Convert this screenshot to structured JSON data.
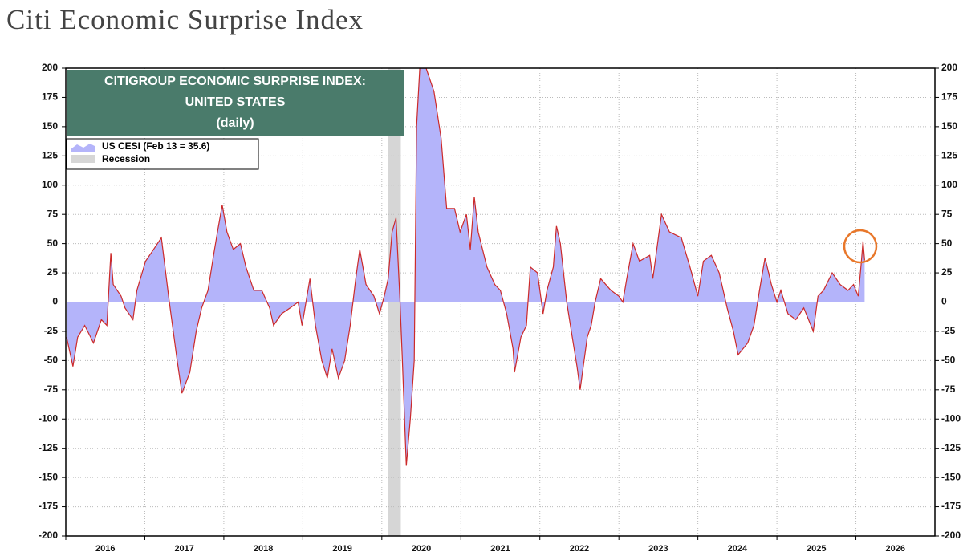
{
  "chart_data": {
    "type": "area",
    "title": "Citi Economic Surprise Index",
    "box_title": [
      "CITIGROUP ECONOMIC SURPRISE INDEX:",
      "UNITED STATES",
      "(daily)"
    ],
    "box_color": "#4a7b6b",
    "x": [
      2016.01,
      2016.09,
      2016.15,
      2016.24,
      2016.35,
      2016.45,
      2016.52,
      2016.57,
      2016.6,
      2016.7,
      2016.75,
      2016.85,
      2016.9,
      2017.01,
      2017.11,
      2017.21,
      2017.31,
      2017.41,
      2017.47,
      2017.57,
      2017.65,
      2017.72,
      2017.8,
      2017.87,
      2017.92,
      2017.98,
      2018.04,
      2018.12,
      2018.21,
      2018.28,
      2018.38,
      2018.48,
      2018.58,
      2018.63,
      2018.73,
      2018.84,
      2018.94,
      2018.99,
      2019.09,
      2019.16,
      2019.24,
      2019.31,
      2019.37,
      2019.45,
      2019.53,
      2019.6,
      2019.67,
      2019.72,
      2019.8,
      2019.9,
      2019.97,
      2020.03,
      2020.08,
      2020.13,
      2020.18,
      2020.23,
      2020.26,
      2020.31,
      2020.36,
      2020.41,
      2020.44,
      2020.48,
      2020.56,
      2020.66,
      2020.75,
      2020.82,
      2020.92,
      2020.99,
      2021.07,
      2021.12,
      2021.17,
      2021.22,
      2021.33,
      2021.43,
      2021.5,
      2021.58,
      2021.66,
      2021.68,
      2021.76,
      2021.83,
      2021.88,
      2021.97,
      2022.04,
      2022.09,
      2022.17,
      2022.21,
      2022.26,
      2022.34,
      2022.41,
      2022.47,
      2022.51,
      2022.6,
      2022.65,
      2022.7,
      2022.77,
      2022.9,
      2023.0,
      2023.05,
      2023.1,
      2023.18,
      2023.26,
      2023.39,
      2023.43,
      2023.54,
      2023.64,
      2023.79,
      2023.9,
      2024.0,
      2024.07,
      2024.17,
      2024.27,
      2024.37,
      2024.45,
      2024.51,
      2024.63,
      2024.71,
      2024.78,
      2024.85,
      2024.93,
      2025.0,
      2025.05,
      2025.14,
      2025.24,
      2025.34,
      2025.46,
      2025.52,
      2025.59,
      2025.7,
      2025.8,
      2025.9,
      2025.97,
      2026.0,
      2026.03,
      2026.07,
      2026.09,
      2026.11
    ],
    "series": [
      {
        "name": "US CESI (Feb 13 = 35.6)",
        "color": "#b4b4fa",
        "line_color": "#cc2a2a",
        "values": [
          -30,
          -55,
          -30,
          -20,
          -35,
          -15,
          -20,
          42,
          15,
          5,
          -5,
          -15,
          10,
          35,
          45,
          55,
          0,
          -50,
          -78,
          -60,
          -25,
          -5,
          10,
          40,
          60,
          83,
          60,
          45,
          50,
          30,
          10,
          10,
          -5,
          -20,
          -10,
          -5,
          0,
          -20,
          20,
          -20,
          -50,
          -65,
          -40,
          -65,
          -50,
          -20,
          20,
          45,
          15,
          5,
          -10,
          5,
          20,
          60,
          72,
          0,
          -50,
          -140,
          -100,
          -50,
          150,
          200,
          200,
          180,
          140,
          80,
          80,
          60,
          75,
          45,
          90,
          60,
          30,
          15,
          10,
          -10,
          -40,
          -60,
          -30,
          -20,
          30,
          25,
          -10,
          10,
          30,
          65,
          50,
          0,
          -30,
          -55,
          -75,
          -30,
          -20,
          0,
          20,
          10,
          5,
          0,
          20,
          50,
          35,
          40,
          20,
          75,
          60,
          55,
          30,
          5,
          35,
          40,
          25,
          -5,
          -25,
          -45,
          -35,
          -20,
          10,
          38,
          15,
          0,
          10,
          -10,
          -15,
          -5,
          -25,
          5,
          10,
          25,
          15,
          10,
          15,
          10,
          5,
          35,
          52,
          35.6
        ]
      }
    ],
    "recession": {
      "label": "Recession",
      "start": 2020.08,
      "end": 2020.24,
      "color": "#d6d6d6"
    },
    "xlim": [
      2016,
      2027
    ],
    "xticks": [
      2016,
      2017,
      2018,
      2019,
      2020,
      2021,
      2022,
      2023,
      2024,
      2025,
      2026
    ],
    "ylim": [
      -200,
      200
    ],
    "yticks": [
      -200,
      -175,
      -150,
      -125,
      -100,
      -75,
      -50,
      -25,
      0,
      25,
      50,
      75,
      100,
      125,
      150,
      175,
      200
    ],
    "grid": true
  }
}
